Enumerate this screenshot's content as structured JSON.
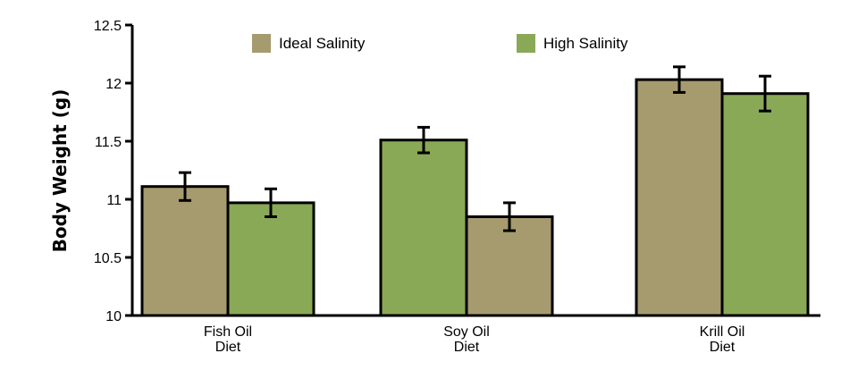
{
  "chart_data": {
    "type": "bar",
    "ylabel": "Body Weight (g)",
    "xlabel": "",
    "ylim": [
      10,
      12.5
    ],
    "yticks": [
      "10",
      "10.5",
      "11",
      "11.5",
      "12",
      "12.5"
    ],
    "categories": [
      [
        "Fish Oil",
        "Diet"
      ],
      [
        "Soy Oil",
        "Diet"
      ],
      [
        "Krill Oil",
        "Diet"
      ]
    ],
    "legend": [
      {
        "name": "Ideal Salinity",
        "color": "#a69b6e"
      },
      {
        "name": "High Salinity",
        "color": "#8aa956"
      }
    ],
    "legend_position": "top",
    "grid": false,
    "bars": [
      {
        "category": 0,
        "series": "Ideal Salinity",
        "color": "#a69b6e",
        "value": 11.11,
        "error": 0.12
      },
      {
        "category": 0,
        "series": "High Salinity",
        "color": "#8aa956",
        "value": 10.97,
        "error": 0.12
      },
      {
        "category": 1,
        "series": "High Salinity",
        "color": "#8aa956",
        "value": 11.51,
        "error": 0.11
      },
      {
        "category": 1,
        "series": "Ideal Salinity",
        "color": "#a69b6e",
        "value": 10.85,
        "error": 0.12
      },
      {
        "category": 2,
        "series": "Ideal Salinity",
        "color": "#a69b6e",
        "value": 12.03,
        "error": 0.11
      },
      {
        "category": 2,
        "series": "High Salinity",
        "color": "#8aa956",
        "value": 11.91,
        "error": 0.15
      }
    ]
  }
}
